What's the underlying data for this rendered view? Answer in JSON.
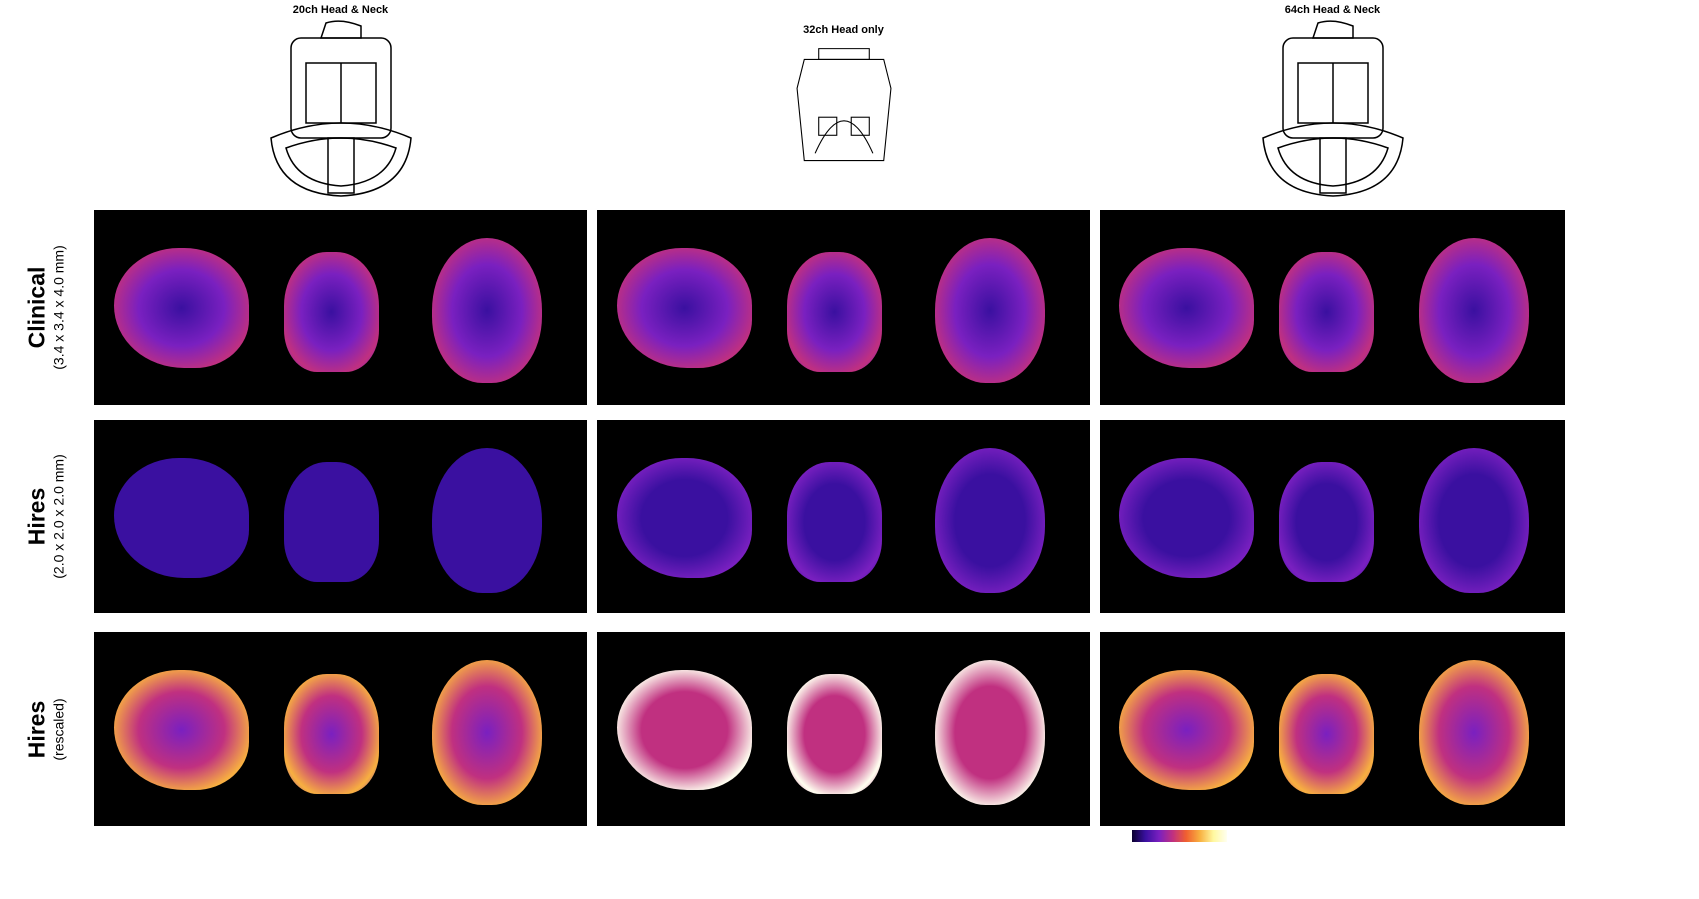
{
  "columns": [
    {
      "title": "20ch Head & Neck",
      "coil_icon": "head-neck-coil-20ch"
    },
    {
      "title": "32ch Head only",
      "coil_icon": "head-coil-32ch"
    },
    {
      "title": "64ch Head & Neck",
      "coil_icon": "head-neck-coil-64ch"
    }
  ],
  "rows": [
    {
      "title": "Clinical",
      "subtitle": "(3.4 x 3.4 x 4.0 mm)",
      "intensity": [
        0.5,
        0.5,
        0.5
      ]
    },
    {
      "title": "Hires",
      "subtitle": "(2.0 x 2.0 x 2.0 mm)",
      "intensity": [
        0.2,
        0.25,
        0.25
      ]
    },
    {
      "title": "Hires",
      "subtitle": "(rescaled)",
      "intensity": [
        0.8,
        0.95,
        0.9
      ]
    }
  ],
  "colorbar": {
    "min": "0.0",
    "max": "14.0",
    "colormap": [
      "#0a0030",
      "#3a10a0",
      "#7a20c0",
      "#c03080",
      "#f06030",
      "#f8b040",
      "#fffff0"
    ]
  }
}
